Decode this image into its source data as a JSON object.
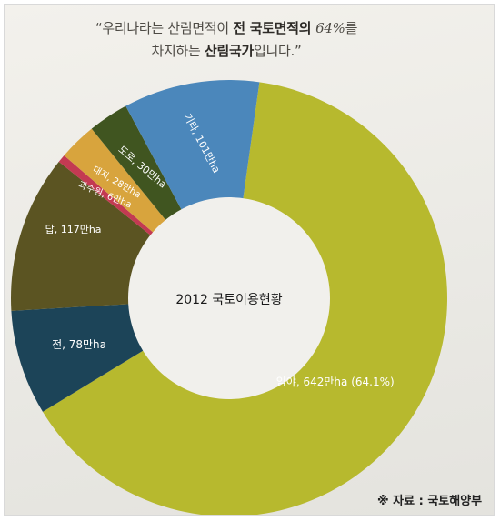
{
  "header": {
    "quote_open": "“우리나라는 산림면적이 ",
    "quote_bold1": "전 국토면적의 ",
    "quote_pct": "64%",
    "quote_mid": "를",
    "quote_line2_a": "차지하는 ",
    "quote_bold2": "산림국가",
    "quote_end": "입니다.”"
  },
  "chart_data": {
    "type": "pie",
    "title": "2012 국토이용현황",
    "unit": "만ha",
    "slices": [
      {
        "name": "임야",
        "value": 642,
        "label": "임야, 642만ha (64.1%)",
        "color": "#b7b92e"
      },
      {
        "name": "전",
        "value": 78,
        "label": "전, 78만ha",
        "color": "#1c4458"
      },
      {
        "name": "답",
        "value": 117,
        "label": "답, 117만ha",
        "color": "#5b5422"
      },
      {
        "name": "과수원",
        "value": 6,
        "label": "과수원, 6만ha",
        "color": "#c33a52"
      },
      {
        "name": "대지",
        "value": 28,
        "label": "대지, 28만ha",
        "color": "#d8a43d"
      },
      {
        "name": "도로",
        "value": 30,
        "label": "도로, 30만ha",
        "color": "#405520"
      },
      {
        "name": "기타",
        "value": 101,
        "label": "기타, 101만ha",
        "color": "#4b87bb"
      }
    ]
  },
  "footer": {
    "source": "※ 자료 : 국토해양부"
  }
}
